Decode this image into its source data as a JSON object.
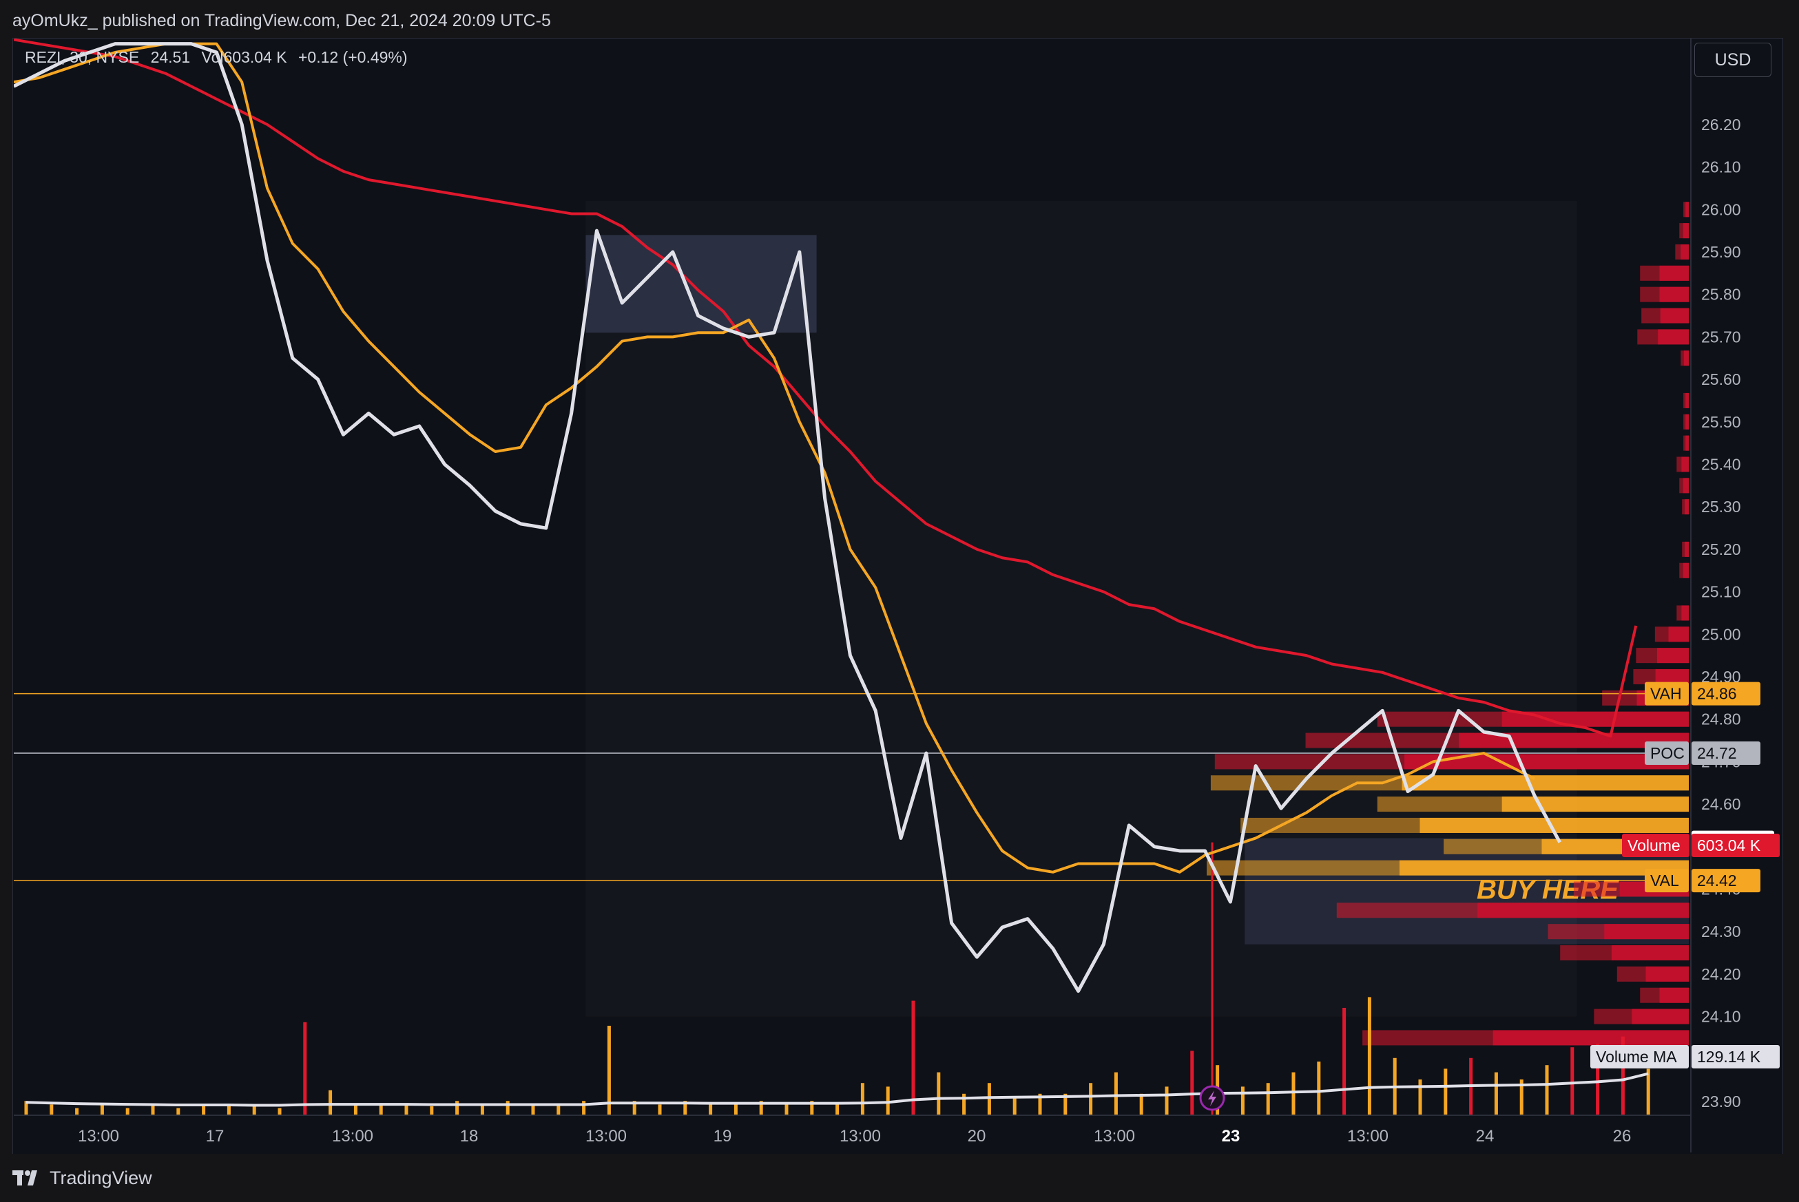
{
  "header": {
    "publish_text": "ayOmUkz_ published on TradingView.com, Dec 21, 2024 20:09 UTC-5"
  },
  "legend": {
    "symbol": "REZI, 30, NYSE",
    "price": "24.51",
    "volume_prefix": "Vol",
    "volume": "603.04 K",
    "change": "+0.12 (+0.49%)"
  },
  "currency": "USD",
  "footer": {
    "logo_text": "TradingView"
  },
  "colors": {
    "background": "#0f1118",
    "price_line": "#e0e1e8",
    "fast_ma": "#f5a623",
    "slow_ma": "#e0182d",
    "vol_up": "#f5a623",
    "vol_down": "#e0182d",
    "vol_ma": "#e0e1e8"
  },
  "chart_data": {
    "type": "line",
    "x_ticks": [
      "13:00",
      "17",
      "13:00",
      "18",
      "13:00",
      "19",
      "13:00",
      "20",
      "13:00",
      "23",
      "13:00",
      "24",
      "26"
    ],
    "y_ticks": [
      26.2,
      26.1,
      26.0,
      25.9,
      25.8,
      25.7,
      25.6,
      25.5,
      25.4,
      25.3,
      25.2,
      25.1,
      25.0,
      24.9,
      24.8,
      24.7,
      24.6,
      24.4,
      24.3,
      24.2,
      24.1,
      24.0,
      23.9
    ],
    "ylim": [
      23.83,
      26.37
    ],
    "x_count": 65,
    "series": [
      {
        "values": [
          26.29,
          26.32,
          26.35,
          26.37,
          26.39,
          26.39,
          26.39,
          26.39,
          26.37,
          26.2,
          25.88,
          25.65,
          25.6,
          25.47,
          25.52,
          25.47,
          25.49,
          25.4,
          25.35,
          25.29,
          25.26,
          25.25,
          25.52,
          25.95,
          25.78,
          25.84,
          25.9,
          25.75,
          25.72,
          25.7,
          25.71,
          25.9,
          25.32,
          24.95,
          24.82,
          24.52,
          24.72,
          24.32,
          24.24,
          24.31,
          24.33,
          24.26,
          24.16,
          24.27,
          24.55,
          24.5,
          24.49,
          24.49,
          24.37,
          24.69,
          24.59,
          24.66,
          24.72,
          24.77,
          24.82,
          24.63,
          24.67,
          24.82,
          24.77,
          24.76,
          24.62,
          24.51
        ]
      },
      {
        "values": [
          26.3,
          26.31,
          26.33,
          26.35,
          26.37,
          26.38,
          26.39,
          26.39,
          26.39,
          26.3,
          26.05,
          25.92,
          25.86,
          25.76,
          25.69,
          25.63,
          25.57,
          25.52,
          25.47,
          25.43,
          25.44,
          25.54,
          25.58,
          25.63,
          25.69,
          25.7,
          25.7,
          25.71,
          25.71,
          25.74,
          25.65,
          25.5,
          25.38,
          25.2,
          25.11,
          24.95,
          24.79,
          24.68,
          24.58,
          24.49,
          24.45,
          24.44,
          24.46,
          24.46,
          24.46,
          24.46,
          24.44,
          24.48,
          24.5,
          24.52,
          24.55,
          24.58,
          24.62,
          24.65,
          24.65,
          24.67,
          24.7,
          24.71,
          24.72,
          24.69,
          24.66
        ]
      },
      {
        "values": [
          26.4,
          26.39,
          26.38,
          26.37,
          26.36,
          26.34,
          26.32,
          26.29,
          26.26,
          26.23,
          26.2,
          26.16,
          26.12,
          26.09,
          26.07,
          26.06,
          26.05,
          26.04,
          26.03,
          26.02,
          26.01,
          26.0,
          25.99,
          25.99,
          25.96,
          25.91,
          25.87,
          25.81,
          25.76,
          25.68,
          25.63,
          25.56,
          25.49,
          25.43,
          25.36,
          25.31,
          25.26,
          25.23,
          25.2,
          25.18,
          25.17,
          25.14,
          25.12,
          25.1,
          25.07,
          25.06,
          25.03,
          25.01,
          24.99,
          24.97,
          24.96,
          24.95,
          24.93,
          24.92,
          24.91,
          24.89,
          24.87,
          24.85,
          24.84,
          24.82,
          24.81,
          24.79,
          24.78,
          24.76,
          25.02
        ]
      }
    ],
    "volume": {
      "values": [
        40,
        30,
        20,
        30,
        20,
        30,
        20,
        30,
        30,
        25,
        20,
        260,
        70,
        30,
        30,
        30,
        25,
        40,
        30,
        40,
        30,
        30,
        40,
        250,
        40,
        30,
        40,
        30,
        30,
        40,
        30,
        40,
        30,
        90,
        80,
        320,
        120,
        60,
        90,
        50,
        60,
        60,
        90,
        120,
        60,
        80,
        180,
        140,
        80,
        90,
        120,
        150,
        300,
        330,
        160,
        100,
        130,
        160,
        120,
        100,
        140,
        190,
        200,
        220,
        130
      ],
      "ma": [
        40,
        38,
        36,
        35,
        34,
        33,
        32,
        32,
        32,
        31,
        31,
        33,
        34,
        34,
        34,
        34,
        33,
        33,
        33,
        33,
        33,
        33,
        33,
        38,
        38,
        38,
        38,
        37,
        37,
        37,
        37,
        37,
        37,
        38,
        40,
        48,
        52,
        53,
        55,
        56,
        57,
        58,
        59,
        61,
        62,
        63,
        66,
        68,
        69,
        70,
        72,
        74,
        80,
        86,
        88,
        89,
        90,
        92,
        93,
        94,
        96,
        100,
        104,
        110,
        129.14
      ]
    },
    "volume_profile": {
      "rows": [
        {
          "price": 26.0,
          "total": 8
        },
        {
          "price": 25.95,
          "total": 14
        },
        {
          "price": 25.9,
          "total": 20
        },
        {
          "price": 25.85,
          "total": 72
        },
        {
          "price": 25.8,
          "total": 72
        },
        {
          "price": 25.75,
          "total": 70
        },
        {
          "price": 25.7,
          "total": 76
        },
        {
          "price": 25.65,
          "total": 12
        },
        {
          "price": 25.55,
          "total": 8
        },
        {
          "price": 25.5,
          "total": 8
        },
        {
          "price": 25.45,
          "total": 8
        },
        {
          "price": 25.4,
          "total": 18
        },
        {
          "price": 25.35,
          "total": 14
        },
        {
          "price": 25.3,
          "total": 10
        },
        {
          "price": 25.2,
          "total": 10
        },
        {
          "price": 25.15,
          "total": 14
        },
        {
          "price": 25.05,
          "total": 18
        },
        {
          "price": 25.0,
          "total": 50
        },
        {
          "price": 24.95,
          "total": 78
        },
        {
          "price": 24.9,
          "total": 82
        },
        {
          "price": 24.85,
          "total": 128
        },
        {
          "price": 24.8,
          "total": 460
        },
        {
          "price": 24.75,
          "total": 566
        },
        {
          "price": 24.7,
          "total": 700
        },
        {
          "price": 24.65,
          "total": 706
        },
        {
          "price": 24.6,
          "total": 460
        },
        {
          "price": 24.55,
          "total": 662
        },
        {
          "price": 24.5,
          "total": 362
        },
        {
          "price": 24.45,
          "total": 712
        },
        {
          "price": 24.4,
          "total": 170
        },
        {
          "price": 24.35,
          "total": 520
        },
        {
          "price": 24.3,
          "total": 208
        },
        {
          "price": 24.25,
          "total": 190
        },
        {
          "price": 24.2,
          "total": 106
        },
        {
          "price": 24.15,
          "total": 72
        },
        {
          "price": 24.1,
          "total": 140
        },
        {
          "price": 24.05,
          "total": 482
        }
      ]
    },
    "levels": [
      {
        "name": "VAH",
        "value": 24.86
      },
      {
        "name": "POC",
        "value": 24.72
      },
      {
        "name": "VAL",
        "value": 24.42
      }
    ],
    "price_labels": [
      {
        "name": "Last",
        "value": "24.51"
      },
      {
        "name": "Volume",
        "value": "603.04 K"
      },
      {
        "name": "Volume MA",
        "value": "129.14 K"
      }
    ],
    "annotations": [
      {
        "text": "BUY HERE",
        "x_range": [
          49,
          76
        ],
        "y_range": [
          24.27,
          24.52
        ]
      },
      {
        "text": "",
        "x_range": [
          23,
          32
        ],
        "y_range": [
          25.71,
          25.94
        ]
      },
      {
        "text": "",
        "x_range": [
          23,
          62
        ],
        "y_range": [
          24.1,
          26.02
        ]
      }
    ]
  }
}
